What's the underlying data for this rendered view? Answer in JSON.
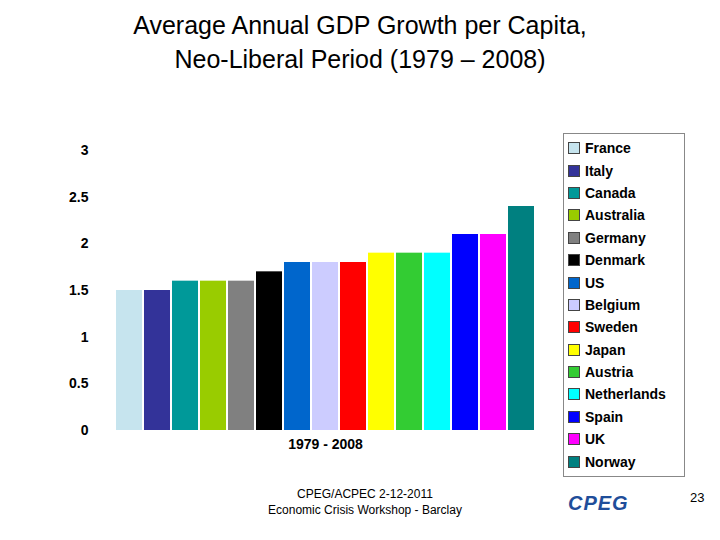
{
  "chart_data": {
    "type": "bar",
    "title": "Average Annual GDP Growth per Capita, Neo-Liberal Period (1979 – 2008)",
    "categories": [
      "1979 - 2008"
    ],
    "series": [
      {
        "name": "France",
        "color": "#c6e4ee",
        "values": [
          1.5
        ]
      },
      {
        "name": "Italy",
        "color": "#333399",
        "values": [
          1.5
        ]
      },
      {
        "name": "Canada",
        "color": "#009999",
        "values": [
          1.6
        ]
      },
      {
        "name": "Australia",
        "color": "#99cc00",
        "values": [
          1.6
        ]
      },
      {
        "name": "Germany",
        "color": "#808080",
        "values": [
          1.6
        ]
      },
      {
        "name": "Denmark",
        "color": "#000000",
        "values": [
          1.7
        ]
      },
      {
        "name": "US",
        "color": "#0066cc",
        "values": [
          1.8
        ]
      },
      {
        "name": "Belgium",
        "color": "#ccccff",
        "values": [
          1.8
        ]
      },
      {
        "name": "Sweden",
        "color": "#ff0000",
        "values": [
          1.8
        ]
      },
      {
        "name": "Japan",
        "color": "#ffff00",
        "values": [
          1.9
        ]
      },
      {
        "name": "Austria",
        "color": "#33cc33",
        "values": [
          1.9
        ]
      },
      {
        "name": "Netherlands",
        "color": "#00ffff",
        "values": [
          1.9
        ]
      },
      {
        "name": "Spain",
        "color": "#0000ff",
        "values": [
          2.1
        ]
      },
      {
        "name": "UK",
        "color": "#ff00ff",
        "values": [
          2.1
        ]
      },
      {
        "name": "Norway",
        "color": "#008080",
        "values": [
          2.4
        ]
      }
    ],
    "ylim": [
      0,
      3
    ],
    "yticks": [
      0,
      0.5,
      1,
      1.5,
      2,
      2.5,
      3
    ],
    "grid": false,
    "legend": "right",
    "annotations": [
      "CPEG/ACPEC 2-12-2011",
      "Economic Crisis Workshop - Barclay",
      "CPEG",
      "23"
    ]
  }
}
